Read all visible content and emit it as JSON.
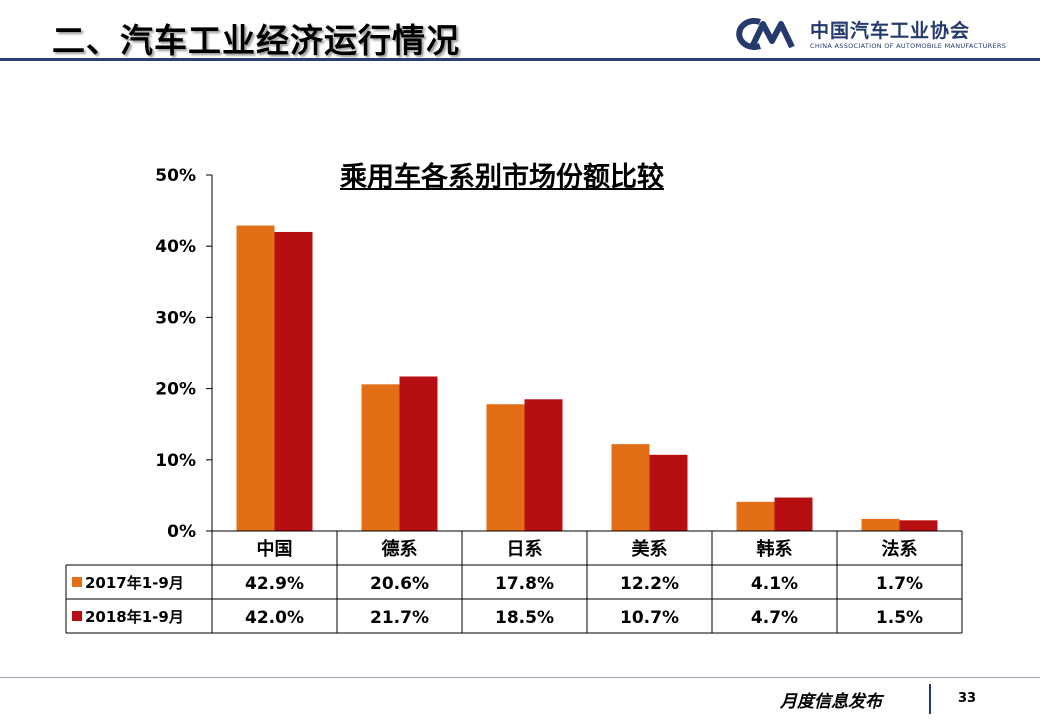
{
  "header": {
    "title": "二、汽车工业经济运行情况"
  },
  "logo": {
    "name_cn": "中国汽车工业协会",
    "name_en": "CHINA ASSOCIATION OF AUTOMOBILE MANUFACTURERS"
  },
  "footer": {
    "label": "月度信息发布",
    "page_number": "33"
  },
  "colors": {
    "series_2017": "#e26f15",
    "series_2018": "#b70e12",
    "header_line": "#2b3f73"
  },
  "chart_data": {
    "type": "bar",
    "title": "乘用车各系别市场份额比较",
    "categories": [
      "中国",
      "德系",
      "日系",
      "美系",
      "韩系",
      "法系"
    ],
    "series": [
      {
        "name": "2017年1-9月",
        "values": [
          42.9,
          20.6,
          17.8,
          12.2,
          4.1,
          1.7
        ],
        "labels": [
          "42.9%",
          "20.6%",
          "17.8%",
          "12.2%",
          "4.1%",
          "1.7%"
        ]
      },
      {
        "name": "2018年1-9月",
        "values": [
          42.0,
          21.7,
          18.5,
          10.7,
          4.7,
          1.5
        ],
        "labels": [
          "42.0%",
          "21.7%",
          "18.5%",
          "10.7%",
          "4.7%",
          "1.5%"
        ]
      }
    ],
    "ylim": [
      0,
      50
    ],
    "yticks": [
      "0%",
      "10%",
      "20%",
      "30%",
      "40%",
      "50%"
    ],
    "grid": false,
    "legend": "data-table"
  }
}
